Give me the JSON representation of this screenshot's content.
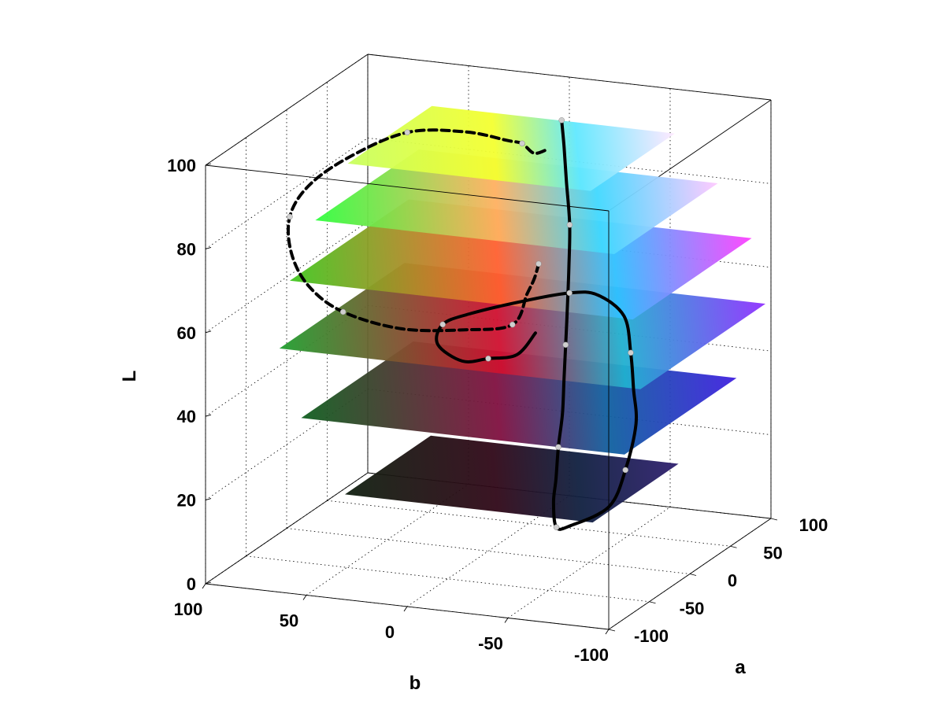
{
  "chart_data": {
    "type": "surface3d",
    "title": "",
    "xlabel": "b",
    "ylabel": "a",
    "zlabel": "L",
    "b_ticks": [
      "100",
      "50",
      "0",
      "-50",
      "-100"
    ],
    "a_ticks": [
      "100",
      "50",
      "0",
      "-50",
      "-100"
    ],
    "L_ticks": [
      "100",
      "80",
      "60",
      "40",
      "20",
      "0"
    ],
    "b_range": [
      -100,
      100
    ],
    "a_range": [
      -100,
      100
    ],
    "L_range": [
      0,
      100
    ],
    "grid": true,
    "slices": [
      {
        "L": 95,
        "colors": [
          "#f4ff30",
          "#c8ff60",
          "#60e8ff",
          "#ffe8ff"
        ]
      },
      {
        "L": 82,
        "colors": [
          "#ffb060",
          "#30ff40",
          "#40d8ff",
          "#ffc8ff"
        ]
      },
      {
        "L": 68,
        "colors": [
          "#ff6030",
          "#40c820",
          "#30c0ff",
          "#ff40ff"
        ]
      },
      {
        "L": 52,
        "colors": [
          "#d01030",
          "#20a030",
          "#20b0d0",
          "#9030ff"
        ]
      },
      {
        "L": 35,
        "colors": [
          "#801040",
          "#106020",
          "#1060a0",
          "#4020e0"
        ]
      },
      {
        "L": 16,
        "colors": [
          "#300818",
          "#102010",
          "#102040",
          "#302070"
        ]
      }
    ],
    "trajectory_dashed": [
      [
        -25,
        0,
        70
      ],
      [
        -22,
        2,
        66
      ],
      [
        -18,
        3,
        62
      ],
      [
        -10,
        5,
        54
      ],
      [
        15,
        8,
        51
      ],
      [
        45,
        5,
        50
      ],
      [
        70,
        -5,
        54
      ],
      [
        85,
        -10,
        60
      ],
      [
        92,
        -14,
        68
      ],
      [
        92,
        -16,
        77
      ],
      [
        85,
        -10,
        84
      ],
      [
        70,
        2,
        90
      ],
      [
        45,
        12,
        96
      ],
      [
        15,
        10,
        98
      ],
      [
        -8,
        4,
        98
      ],
      [
        -16,
        2,
        98
      ],
      [
        -22,
        2,
        96
      ],
      [
        -28,
        5,
        97
      ]
    ],
    "trajectory_solid": [
      [
        -34,
        6,
        104
      ],
      [
        -36,
        4,
        98
      ],
      [
        -38,
        2,
        90
      ],
      [
        -40,
        1,
        80
      ],
      [
        -40,
        0,
        70
      ],
      [
        -40,
        -2,
        60
      ],
      [
        -40,
        -4,
        52
      ],
      [
        -40,
        -6,
        44
      ],
      [
        -40,
        -8,
        36
      ],
      [
        -38,
        -8,
        28
      ],
      [
        -36,
        -6,
        20
      ],
      [
        -34,
        -4,
        14
      ],
      [
        -35,
        -3,
        8
      ],
      [
        -40,
        2,
        8
      ],
      [
        -55,
        12,
        12
      ],
      [
        -60,
        20,
        20
      ],
      [
        -62,
        28,
        30
      ],
      [
        -60,
        30,
        38
      ],
      [
        -57,
        34,
        46
      ],
      [
        -52,
        38,
        54
      ],
      [
        -38,
        40,
        58
      ],
      [
        -25,
        38,
        58
      ],
      [
        -5,
        30,
        56
      ],
      [
        15,
        14,
        54
      ],
      [
        25,
        6,
        52
      ],
      [
        25,
        0,
        48
      ],
      [
        12,
        -2,
        45
      ],
      [
        0,
        0,
        46
      ],
      [
        -15,
        -2,
        48
      ],
      [
        -25,
        -4,
        54
      ]
    ]
  }
}
